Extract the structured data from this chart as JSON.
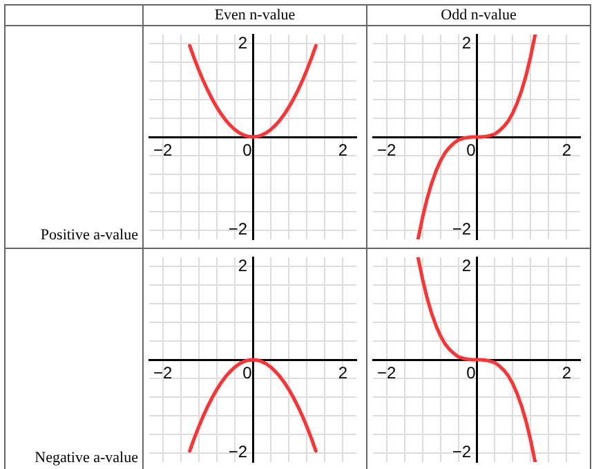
{
  "chart_data": [
    {
      "type": "line",
      "title": "Even n-value",
      "annotations": [
        "Positive a-value"
      ],
      "x": [
        -1.4,
        -1.3,
        -1.2,
        -1.1,
        -1,
        -0.9,
        -0.8,
        -0.7,
        -0.6,
        -0.5,
        -0.4,
        -0.3,
        -0.2,
        -0.1,
        0,
        0.1,
        0.2,
        0.3,
        0.4,
        0.5,
        0.6,
        0.7,
        0.8,
        0.9,
        1,
        1.1,
        1.2,
        1.3,
        1.4
      ],
      "series": [
        {
          "color": "#ff3333",
          "values": [
            1.96,
            1.69,
            1.44,
            1.21,
            1,
            0.81,
            0.64,
            0.49,
            0.36,
            0.25,
            0.16,
            0.09,
            0.04,
            0.01,
            0,
            0.01,
            0.04,
            0.09,
            0.16,
            0.25,
            0.36,
            0.49,
            0.64,
            0.81,
            1,
            1.21,
            1.44,
            1.69,
            1.96
          ]
        }
      ],
      "xlim": [
        -2.3,
        2.3
      ],
      "ylim": [
        -2.2,
        2.2
      ],
      "xticks": [
        {
          "value": -2,
          "label": "−2"
        },
        {
          "value": -1.6,
          "label": null
        },
        {
          "value": -1.2,
          "label": null
        },
        {
          "value": -0.8,
          "label": null
        },
        {
          "value": -0.4,
          "label": null
        },
        {
          "value": 0,
          "label": "0"
        },
        {
          "value": 0.4,
          "label": null
        },
        {
          "value": 0.8,
          "label": null
        },
        {
          "value": 1.2,
          "label": null
        },
        {
          "value": 1.6,
          "label": null
        },
        {
          "value": 2,
          "label": "2"
        }
      ],
      "yticks": [
        {
          "value": -2,
          "label": "−2"
        },
        {
          "value": -1.6,
          "label": null
        },
        {
          "value": -1.2,
          "label": null
        },
        {
          "value": -0.8,
          "label": null
        },
        {
          "value": -0.4,
          "label": null
        },
        {
          "value": 0,
          "label": null
        },
        {
          "value": 0.4,
          "label": null
        },
        {
          "value": 0.8,
          "label": null
        },
        {
          "value": 1.2,
          "label": null
        },
        {
          "value": 1.6,
          "label": null
        },
        {
          "value": 2,
          "label": "2"
        }
      ],
      "grid": true,
      "marker": "none"
    },
    {
      "type": "line",
      "title": "Odd n-value",
      "x": [
        -1.3,
        -1.2,
        -1.1,
        -1,
        -0.9,
        -0.8,
        -0.7,
        -0.6,
        -0.5,
        -0.4,
        -0.3,
        -0.2,
        -0.1,
        0,
        0.1,
        0.2,
        0.3,
        0.4,
        0.5,
        0.6,
        0.7,
        0.8,
        0.9,
        1,
        1.1,
        1.2,
        1.3
      ],
      "series": [
        {
          "color": "#ff3333",
          "values": [
            -2.2,
            -1.73,
            -1.33,
            -1,
            -0.73,
            -0.51,
            -0.34,
            -0.22,
            -0.13,
            -0.06,
            -0.03,
            -0.01,
            0,
            0,
            0,
            0.01,
            0.03,
            0.06,
            0.13,
            0.22,
            0.34,
            0.51,
            0.73,
            1,
            1.33,
            1.73,
            2.2
          ]
        }
      ],
      "xlim": [
        -2.3,
        2.3
      ],
      "ylim": [
        -2.2,
        2.2
      ],
      "xticks": [
        {
          "value": -2,
          "label": "−2"
        },
        {
          "value": -1.6,
          "label": null
        },
        {
          "value": -1.2,
          "label": null
        },
        {
          "value": -0.8,
          "label": null
        },
        {
          "value": -0.4,
          "label": null
        },
        {
          "value": 0,
          "label": "0"
        },
        {
          "value": 0.4,
          "label": null
        },
        {
          "value": 0.8,
          "label": null
        },
        {
          "value": 1.2,
          "label": null
        },
        {
          "value": 1.6,
          "label": null
        },
        {
          "value": 2,
          "label": "2"
        }
      ],
      "yticks": [
        {
          "value": -2,
          "label": "−2"
        },
        {
          "value": -1.6,
          "label": null
        },
        {
          "value": -1.2,
          "label": null
        },
        {
          "value": -0.8,
          "label": null
        },
        {
          "value": -0.4,
          "label": null
        },
        {
          "value": 0,
          "label": null
        },
        {
          "value": 0.4,
          "label": null
        },
        {
          "value": 0.8,
          "label": null
        },
        {
          "value": 1.2,
          "label": null
        },
        {
          "value": 1.6,
          "label": null
        },
        {
          "value": 2,
          "label": "2"
        }
      ],
      "grid": true,
      "marker": "none"
    },
    {
      "type": "line",
      "annotations": [
        "Negative a-value"
      ],
      "x": [
        -1.4,
        -1.3,
        -1.2,
        -1.1,
        -1,
        -0.9,
        -0.8,
        -0.7,
        -0.6,
        -0.5,
        -0.4,
        -0.3,
        -0.2,
        -0.1,
        0,
        0.1,
        0.2,
        0.3,
        0.4,
        0.5,
        0.6,
        0.7,
        0.8,
        0.9,
        1,
        1.1,
        1.2,
        1.3,
        1.4
      ],
      "series": [
        {
          "color": "#ff3333",
          "values": [
            -1.96,
            -1.69,
            -1.44,
            -1.21,
            -1,
            -0.81,
            -0.64,
            -0.49,
            -0.36,
            -0.25,
            -0.16,
            -0.09,
            -0.04,
            -0.01,
            0,
            -0.01,
            -0.04,
            -0.09,
            -0.16,
            -0.25,
            -0.36,
            -0.49,
            -0.64,
            -0.81,
            -1,
            -1.21,
            -1.44,
            -1.69,
            -1.96
          ]
        }
      ],
      "xlim": [
        -2.3,
        2.3
      ],
      "ylim": [
        -2.2,
        2.2
      ],
      "xticks": [
        {
          "value": -2,
          "label": "−2"
        },
        {
          "value": -1.6,
          "label": null
        },
        {
          "value": -1.2,
          "label": null
        },
        {
          "value": -0.8,
          "label": null
        },
        {
          "value": -0.4,
          "label": null
        },
        {
          "value": 0,
          "label": "0"
        },
        {
          "value": 0.4,
          "label": null
        },
        {
          "value": 0.8,
          "label": null
        },
        {
          "value": 1.2,
          "label": null
        },
        {
          "value": 1.6,
          "label": null
        },
        {
          "value": 2,
          "label": "2"
        }
      ],
      "yticks": [
        {
          "value": -2,
          "label": "−2"
        },
        {
          "value": -1.6,
          "label": null
        },
        {
          "value": -1.2,
          "label": null
        },
        {
          "value": -0.8,
          "label": null
        },
        {
          "value": -0.4,
          "label": null
        },
        {
          "value": 0,
          "label": null
        },
        {
          "value": 0.4,
          "label": null
        },
        {
          "value": 0.8,
          "label": null
        },
        {
          "value": 1.2,
          "label": null
        },
        {
          "value": 1.6,
          "label": null
        },
        {
          "value": 2,
          "label": "2"
        }
      ],
      "grid": true,
      "marker": "none"
    },
    {
      "type": "line",
      "x": [
        -1.3,
        -1.2,
        -1.1,
        -1,
        -0.9,
        -0.8,
        -0.7,
        -0.6,
        -0.5,
        -0.4,
        -0.3,
        -0.2,
        -0.1,
        0,
        0.1,
        0.2,
        0.3,
        0.4,
        0.5,
        0.6,
        0.7,
        0.8,
        0.9,
        1,
        1.1,
        1.2,
        1.3
      ],
      "series": [
        {
          "color": "#ff3333",
          "values": [
            2.2,
            1.73,
            1.33,
            1,
            0.73,
            0.51,
            0.34,
            0.22,
            0.13,
            0.06,
            0.03,
            0.01,
            0,
            0,
            0,
            -0.01,
            -0.03,
            -0.06,
            -0.13,
            -0.22,
            -0.34,
            -0.51,
            -0.73,
            -1,
            -1.33,
            -1.73,
            -2.2
          ]
        }
      ],
      "xlim": [
        -2.3,
        2.3
      ],
      "ylim": [
        -2.2,
        2.2
      ],
      "xticks": [
        {
          "value": -2,
          "label": "−2"
        },
        {
          "value": -1.6,
          "label": null
        },
        {
          "value": -1.2,
          "label": null
        },
        {
          "value": -0.8,
          "label": null
        },
        {
          "value": -0.4,
          "label": null
        },
        {
          "value": 0,
          "label": "0"
        },
        {
          "value": 0.4,
          "label": null
        },
        {
          "value": 0.8,
          "label": null
        },
        {
          "value": 1.2,
          "label": null
        },
        {
          "value": 1.6,
          "label": null
        },
        {
          "value": 2,
          "label": "2"
        }
      ],
      "yticks": [
        {
          "value": -2,
          "label": "−2"
        },
        {
          "value": -1.6,
          "label": null
        },
        {
          "value": -1.2,
          "label": null
        },
        {
          "value": -0.8,
          "label": null
        },
        {
          "value": -0.4,
          "label": null
        },
        {
          "value": 0,
          "label": null
        },
        {
          "value": 0.4,
          "label": null
        },
        {
          "value": 0.8,
          "label": null
        },
        {
          "value": 1.2,
          "label": null
        },
        {
          "value": 1.6,
          "label": null
        },
        {
          "value": 2,
          "label": "2"
        }
      ],
      "grid": true,
      "marker": "none"
    }
  ]
}
